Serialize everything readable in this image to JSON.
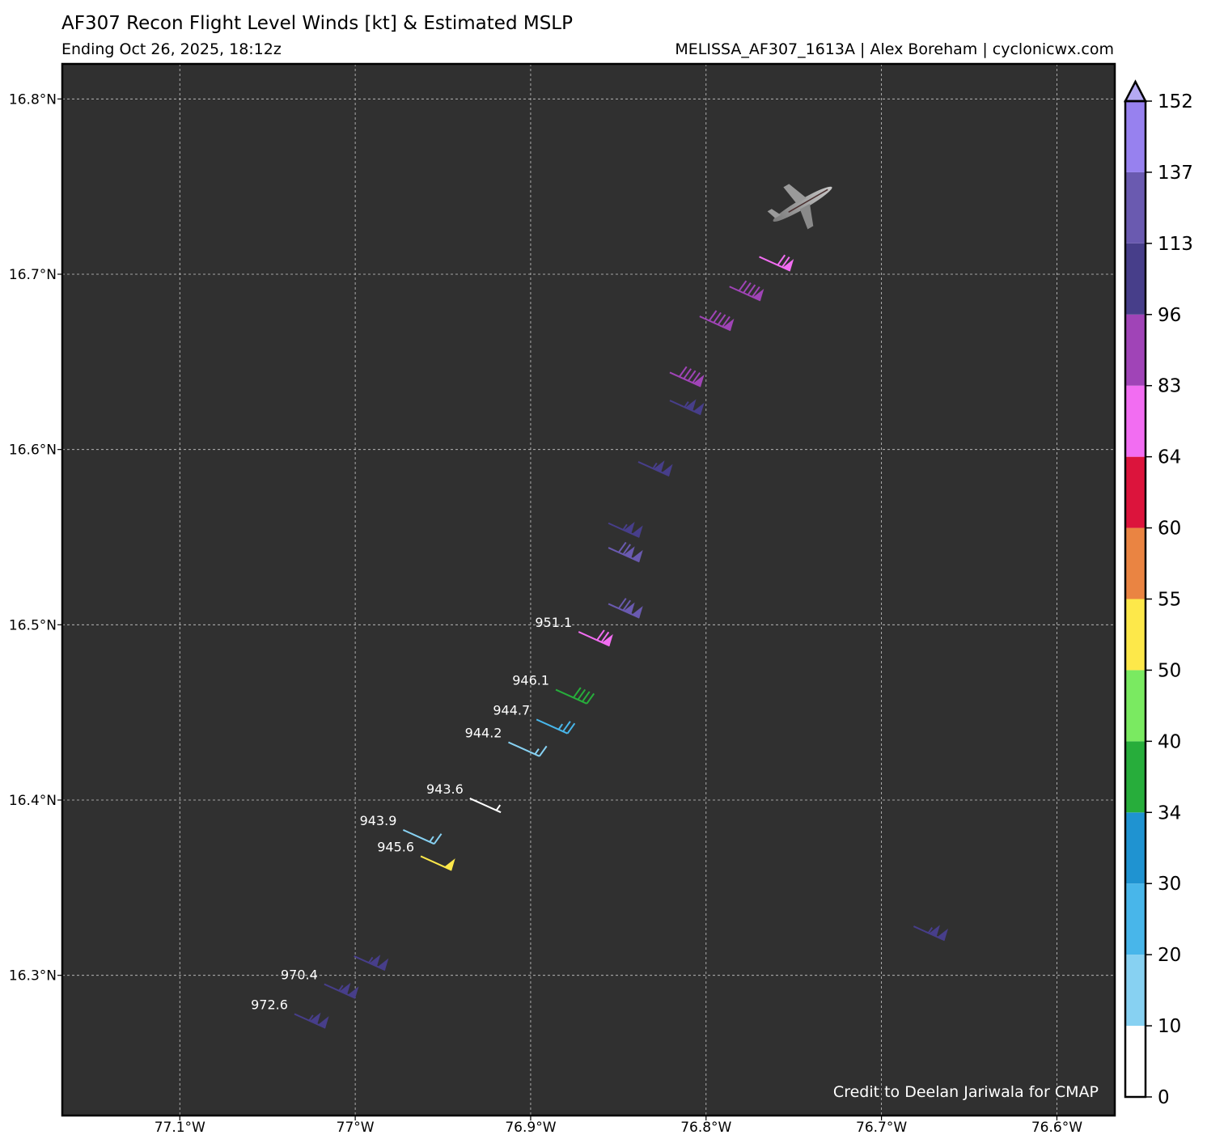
{
  "header": {
    "title": "AF307 Recon Flight Level Winds [kt] & Estimated MSLP",
    "subtitle_left": "Ending Oct 26, 2025, 18:12z",
    "subtitle_right": "MELISSA_AF307_1613A | Alex Boreham | cyclonicwx.com"
  },
  "credit": "Credit to Deelan Jariwala for CMAP",
  "map": {
    "background": "#303030",
    "lat_ticks": [
      {
        "value": 16.8,
        "label": "16.8°N"
      },
      {
        "value": 16.7,
        "label": "16.7°N"
      },
      {
        "value": 16.6,
        "label": "16.6°N"
      },
      {
        "value": 16.5,
        "label": "16.5°N"
      },
      {
        "value": 16.4,
        "label": "16.4°N"
      },
      {
        "value": 16.3,
        "label": "16.3°N"
      }
    ],
    "lon_ticks": [
      {
        "value": -77.1,
        "label": "77.1°W"
      },
      {
        "value": -77.0,
        "label": "77°W"
      },
      {
        "value": -76.9,
        "label": "76.9°W"
      },
      {
        "value": -76.8,
        "label": "76.8°W"
      },
      {
        "value": -76.7,
        "label": "76.7°W"
      },
      {
        "value": -76.6,
        "label": "76.6°W"
      }
    ]
  },
  "chart_data": {
    "type": "map",
    "lon_range": [
      -77.167,
      -76.567
    ],
    "lat_range": [
      16.22,
      16.82
    ],
    "aircraft_icon": "airplane-icon",
    "aircraft_position": {
      "lon": -76.745,
      "lat": 16.74
    },
    "wind_barbs": [
      {
        "lon": -76.752,
        "lat": 16.702,
        "speed_kt": 70,
        "color": "#f26df2"
      },
      {
        "lon": -76.769,
        "lat": 16.685,
        "speed_kt": 90,
        "color": "#a044b7"
      },
      {
        "lon": -76.786,
        "lat": 16.668,
        "speed_kt": 90,
        "color": "#a044b7"
      },
      {
        "lon": -76.803,
        "lat": 16.636,
        "speed_kt": 90,
        "color": "#a044b7"
      },
      {
        "lon": -76.803,
        "lat": 16.62,
        "speed_kt": 105,
        "color": "#473e8a"
      },
      {
        "lon": -76.821,
        "lat": 16.585,
        "speed_kt": 105,
        "color": "#473e8a"
      },
      {
        "lon": -76.838,
        "lat": 16.55,
        "speed_kt": 105,
        "color": "#473e8a"
      },
      {
        "lon": -76.838,
        "lat": 16.536,
        "speed_kt": 120,
        "color": "#6a5ab0"
      },
      {
        "lon": -76.838,
        "lat": 16.504,
        "speed_kt": 120,
        "color": "#6a5ab0"
      },
      {
        "lon": -76.855,
        "lat": 16.488,
        "speed_kt": 70,
        "color": "#f26df2",
        "pressure": "951.1"
      },
      {
        "lon": -76.868,
        "lat": 16.455,
        "speed_kt": 40,
        "color": "#27ad3b",
        "pressure": "946.1"
      },
      {
        "lon": -76.879,
        "lat": 16.438,
        "speed_kt": 25,
        "color": "#48b6ea",
        "pressure": "944.7"
      },
      {
        "lon": -76.895,
        "lat": 16.425,
        "speed_kt": 15,
        "color": "#87d1f2",
        "pressure": "944.2"
      },
      {
        "lon": -76.917,
        "lat": 16.393,
        "speed_kt": 5,
        "color": "#ffffff",
        "pressure": "943.6"
      },
      {
        "lon": -76.955,
        "lat": 16.375,
        "speed_kt": 15,
        "color": "#87d1f2",
        "pressure": "943.9"
      },
      {
        "lon": -76.945,
        "lat": 16.36,
        "speed_kt": 52,
        "color": "#fde84a",
        "pressure": "945.6"
      },
      {
        "lon": -76.664,
        "lat": 16.32,
        "speed_kt": 105,
        "color": "#473e8a"
      },
      {
        "lon": -76.983,
        "lat": 16.303,
        "speed_kt": 105,
        "color": "#473e8a"
      },
      {
        "lon": -77.0,
        "lat": 16.287,
        "speed_kt": 105,
        "color": "#473e8a",
        "pressure": "970.4"
      },
      {
        "lon": -77.017,
        "lat": 16.27,
        "speed_kt": 105,
        "color": "#473e8a",
        "pressure": "972.6"
      }
    ]
  },
  "colorbar": {
    "ticks": [
      "0",
      "10",
      "20",
      "30",
      "34",
      "40",
      "50",
      "55",
      "60",
      "64",
      "83",
      "96",
      "113",
      "137",
      "152"
    ],
    "colors": [
      "#ffffff",
      "#87d1f2",
      "#48b6ea",
      "#1f93d1",
      "#27ad3b",
      "#7aea61",
      "#fde84a",
      "#ea8442",
      "#dc143c",
      "#f26df2",
      "#a044b7",
      "#473e8a",
      "#6a5ab0",
      "#9781ef"
    ],
    "extend_color": "#b4a9f2"
  }
}
